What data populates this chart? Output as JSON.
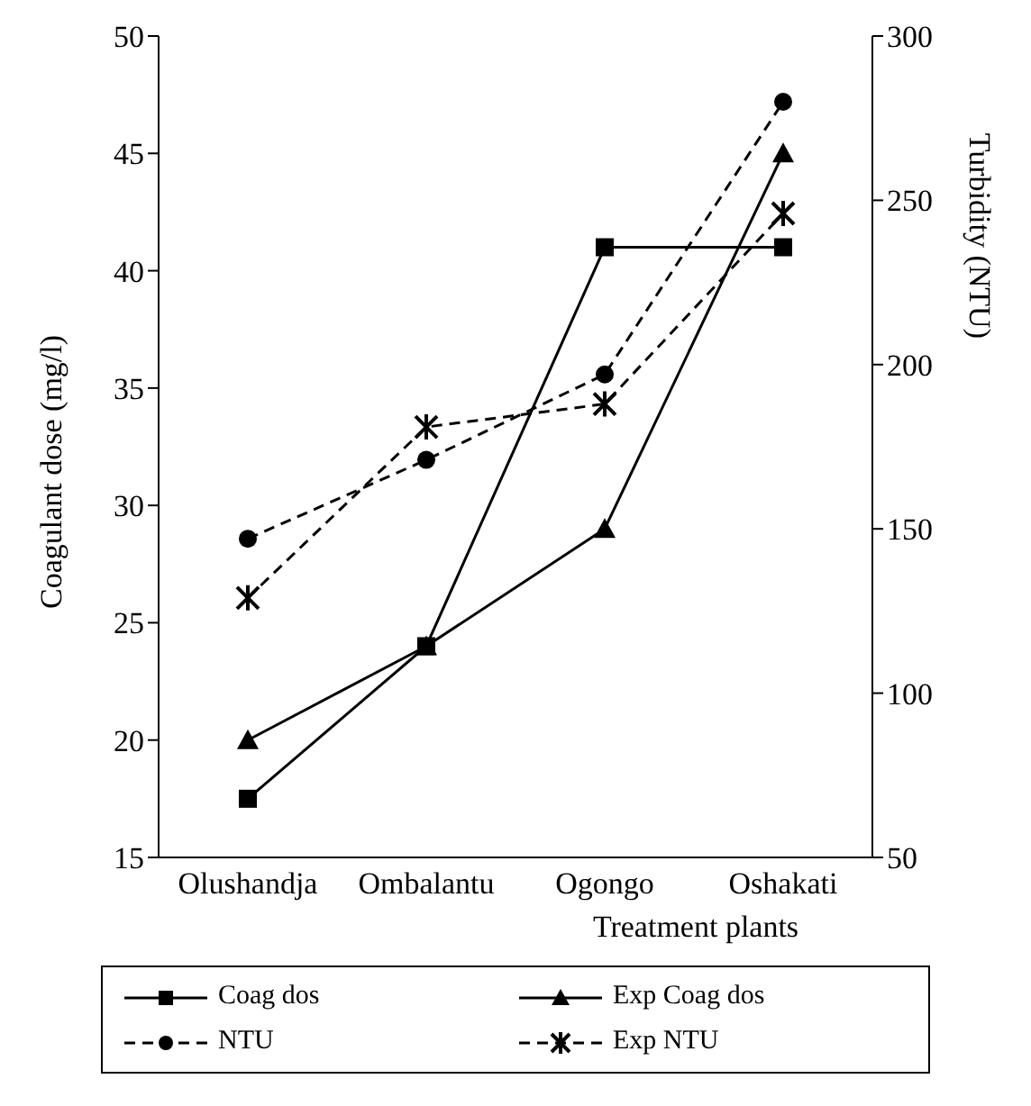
{
  "chart_data": {
    "type": "line",
    "xlabel": "Treatment plants",
    "ylabel": "Coagulant dose (mg/l)",
    "y2label": "Turbidity (NTU)",
    "categories": [
      "Olushandja",
      "Ombalantu",
      "Ogongo",
      "Oshakati"
    ],
    "series": [
      {
        "name": "Coag dos",
        "color": "#000000",
        "values": [
          17.5,
          24,
          41,
          41
        ],
        "marker": "square",
        "line_style": "solid"
      },
      {
        "name": "Exp Coag dos",
        "color": "#000000",
        "values": [
          20,
          24,
          29,
          45
        ],
        "marker": "triangle",
        "line_style": "solid"
      },
      {
        "name": "NTU",
        "color": "#000000",
        "values": [
          147,
          171,
          197,
          280
        ],
        "marker": "circle",
        "line_style": "dashed",
        "axis": "y2"
      },
      {
        "name": "Exp NTU",
        "color": "#000000",
        "values": [
          129,
          181,
          188,
          246
        ],
        "marker": "cross",
        "line_style": "dashed",
        "axis": "y2"
      }
    ],
    "ylim": [
      15,
      50
    ],
    "yticks": [
      15,
      20,
      25,
      30,
      35,
      40,
      45,
      50
    ],
    "y2lim": [
      50,
      300
    ],
    "y2ticks": [
      50,
      100,
      150,
      200,
      250,
      300
    ],
    "grid": false,
    "legend": "bottom"
  }
}
